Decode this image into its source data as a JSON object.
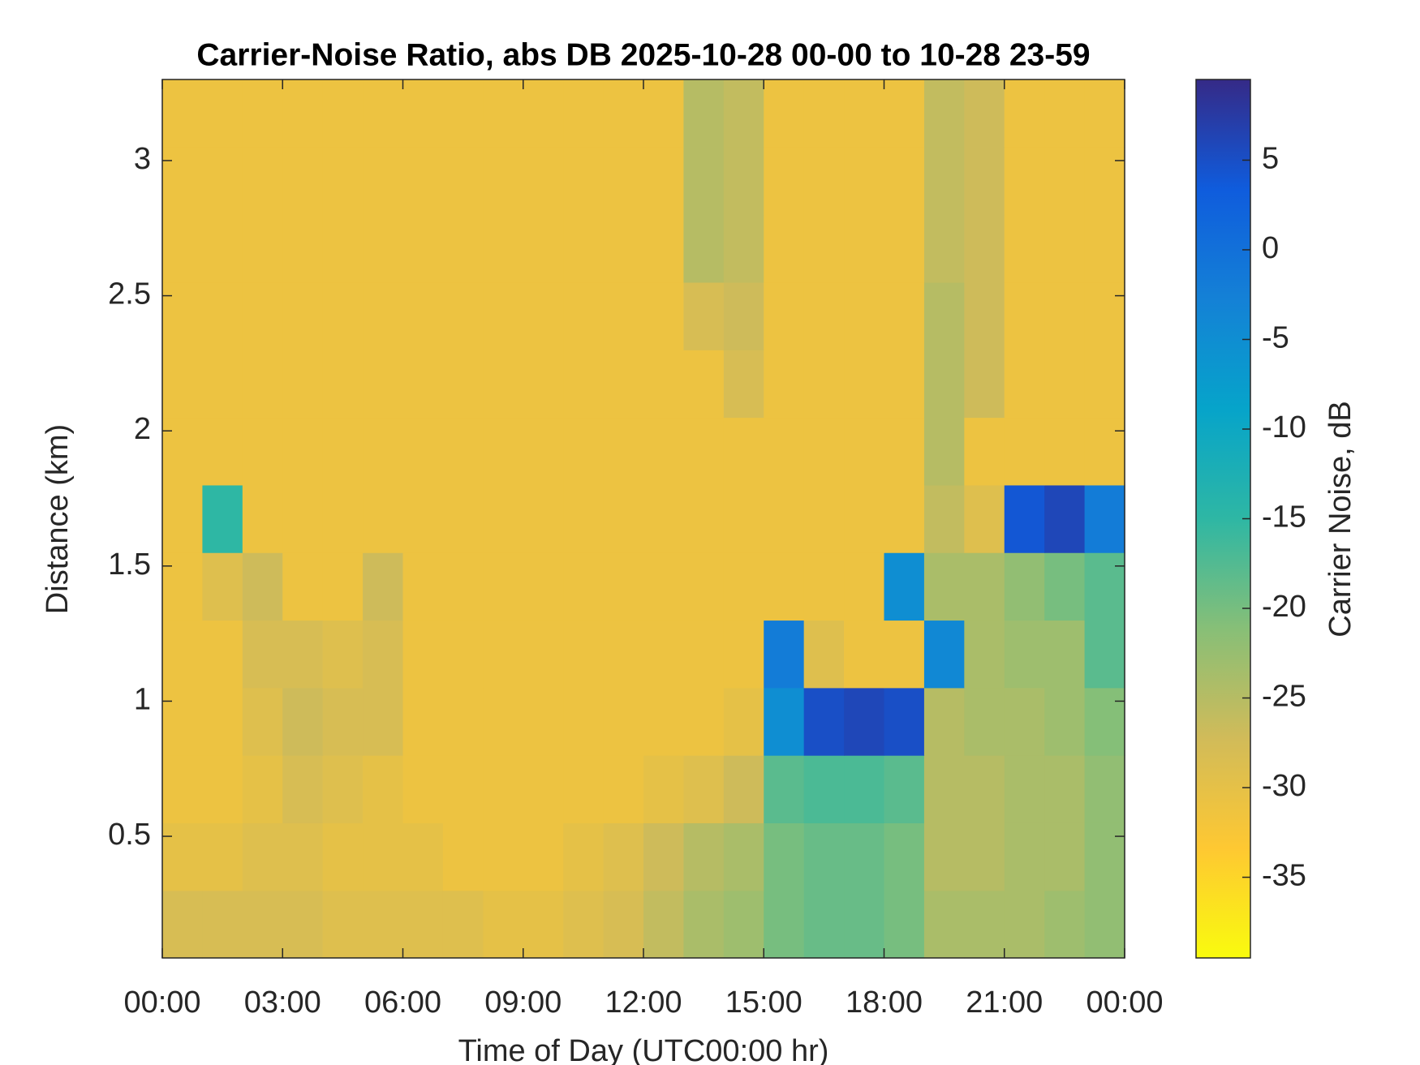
{
  "chart_data": {
    "type": "heatmap",
    "title": "Carrier-Noise Ratio, abs DB 2025-10-28 00-00 to 10-28 23-59",
    "x_label": "Time of Day (UTC00:00 hr)",
    "y_label": "Distance (km)",
    "colorbar_label": "Carrier Noise, dB",
    "xlim": [
      0,
      24
    ],
    "xticks": [
      {
        "value": 0,
        "label": "00:00"
      },
      {
        "value": 3,
        "label": "03:00"
      },
      {
        "value": 6,
        "label": "06:00"
      },
      {
        "value": 9,
        "label": "09:00"
      },
      {
        "value": 12,
        "label": "12:00"
      },
      {
        "value": 15,
        "label": "15:00"
      },
      {
        "value": 18,
        "label": "18:00"
      },
      {
        "value": 21,
        "label": "21:00"
      },
      {
        "value": 24,
        "label": "00:00"
      }
    ],
    "ylim": [
      0.05,
      3.3
    ],
    "yticks": [
      0.5,
      1,
      1.5,
      2,
      2.5,
      3
    ],
    "clim": [
      -39.5,
      9.5
    ],
    "cticks": [
      -35,
      -30,
      -25,
      -20,
      -15,
      -10,
      -5,
      0,
      5
    ],
    "colormap": [
      "#f9fb0e",
      "#fec832",
      "#d1bb59",
      "#87bf77",
      "#2eb7a4",
      "#06a4ca",
      "#1481d6",
      "#0f5cdd",
      "#352a87"
    ],
    "x": [
      0.5,
      1.5,
      2.5,
      3.5,
      4.5,
      5.5,
      6.5,
      7.5,
      8.5,
      9.5,
      10.5,
      11.5,
      12.5,
      13.5,
      14.5,
      15.5,
      16.5,
      17.5,
      18.5,
      19.5,
      20.5,
      21.5,
      22.5,
      23.5
    ],
    "y": [
      0.175,
      0.425,
      0.675,
      0.925,
      1.175,
      1.425,
      1.675,
      1.925,
      2.175,
      2.425,
      2.675,
      2.925,
      3.175
    ],
    "z": [
      [
        -28,
        -28,
        -28,
        -28,
        -29,
        -29,
        -29,
        -29,
        -30,
        -30,
        -29,
        -28,
        -26,
        -24,
        -23,
        -20,
        -19,
        -19,
        -20,
        -24,
        -24,
        -24,
        -23,
        -22
      ],
      [
        -30,
        -30,
        -29,
        -29,
        -30,
        -30,
        -30,
        -31,
        -31,
        -31,
        -30,
        -29,
        -27,
        -25,
        -24,
        -20,
        -19,
        -19,
        -20,
        -25,
        -25,
        -24,
        -24,
        -22
      ],
      [
        -31,
        -31,
        -30,
        -28,
        -29,
        -30,
        -31,
        -31,
        -31,
        -31,
        -31,
        -31,
        -30,
        -29,
        -27,
        -18,
        -17,
        -17,
        -18,
        -25,
        -25,
        -24,
        -24,
        -22
      ],
      [
        -31,
        -31,
        -29,
        -27,
        -28,
        -28,
        -31,
        -31,
        -31,
        -31,
        -31,
        -31,
        -31,
        -31,
        -30,
        -5,
        5,
        6,
        5,
        -25,
        -24,
        -24,
        -23,
        -21
      ],
      [
        -31,
        -31,
        -28,
        -28,
        -29,
        -28,
        -31,
        -31,
        -31,
        -31,
        -31,
        -31,
        -31,
        -31,
        -31,
        -2,
        -29,
        -31,
        -31,
        -4,
        -24,
        -23,
        -23,
        -18
      ],
      [
        -31,
        -29,
        -27,
        -31,
        -31,
        -27,
        -31,
        -31,
        -31,
        -31,
        -31,
        -31,
        -31,
        -31,
        -31,
        -31,
        -31,
        -31,
        -5,
        -24,
        -24,
        -22,
        -20,
        -18
      ],
      [
        -31,
        -15,
        -31,
        -31,
        -31,
        -31,
        -31,
        -31,
        -31,
        -31,
        -31,
        -31,
        -31,
        -31,
        -31,
        -31,
        -31,
        -31,
        -31,
        -26,
        -29,
        4,
        6,
        -2
      ],
      [
        -31,
        -31,
        -31,
        -31,
        -31,
        -31,
        -31,
        -31,
        -31,
        -31,
        -31,
        -31,
        -31,
        -31,
        -31,
        -31,
        -31,
        -31,
        -31,
        -25,
        -31,
        -31,
        -31,
        -31
      ],
      [
        -31,
        -31,
        -31,
        -31,
        -31,
        -31,
        -31,
        -31,
        -31,
        -31,
        -31,
        -31,
        -31,
        -31,
        -28,
        -31,
        -31,
        -31,
        -31,
        -25,
        -27,
        -31,
        -31,
        -31
      ],
      [
        -31,
        -31,
        -31,
        -31,
        -31,
        -31,
        -31,
        -31,
        -31,
        -31,
        -31,
        -31,
        -31,
        -28,
        -27,
        -31,
        -31,
        -31,
        -31,
        -25,
        -27,
        -31,
        -31,
        -31
      ],
      [
        -31,
        -31,
        -31,
        -31,
        -31,
        -31,
        -31,
        -31,
        -31,
        -31,
        -31,
        -31,
        -31,
        -25,
        -26,
        -31,
        -31,
        -31,
        -31,
        -26,
        -27,
        -31,
        -31,
        -31
      ],
      [
        -31,
        -31,
        -31,
        -31,
        -31,
        -31,
        -31,
        -31,
        -31,
        -31,
        -31,
        -31,
        -31,
        -25,
        -26,
        -31,
        -31,
        -31,
        -31,
        -26,
        -27,
        -31,
        -31,
        -31
      ],
      [
        -31,
        -31,
        -31,
        -31,
        -31,
        -31,
        -31,
        -31,
        -31,
        -31,
        -31,
        -31,
        -31,
        -25,
        -26,
        -31,
        -31,
        -31,
        -31,
        -26,
        -27,
        -31,
        -31,
        -31
      ]
    ]
  }
}
